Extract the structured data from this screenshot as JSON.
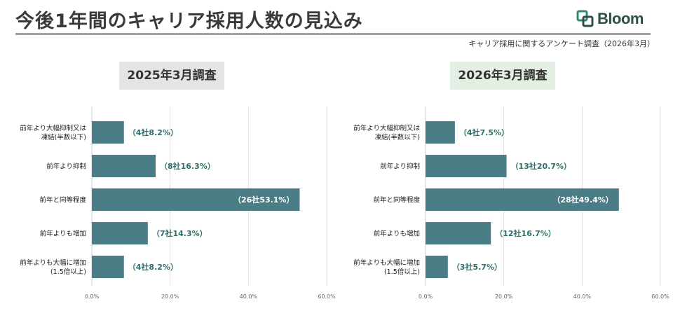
{
  "header": {
    "title": "今後1年間のキャリア採用人数の見込み",
    "logo_text": "Bloom",
    "source": "キャリア採用に関するアンケート調査（2026年3月）"
  },
  "colors": {
    "bar": "#4a7d86",
    "label": "#2f6f6a",
    "grid": "#d6d6d6",
    "rule": "#9aa7a5"
  },
  "chart_data": [
    {
      "type": "bar",
      "orientation": "horizontal",
      "title": "2025年3月調査",
      "categories": [
        [
          "前年より大幅抑制又は",
          "凍結(半数以下)"
        ],
        [
          "前年より抑制"
        ],
        [
          "前年と同等程度"
        ],
        [
          "前年よりも増加"
        ],
        [
          "前年よりも大幅に増加",
          "(1.5倍以上)"
        ]
      ],
      "values": [
        8.2,
        16.3,
        53.1,
        14.3,
        8.2
      ],
      "data_labels": [
        "（4社8.2%）",
        "（8社16.3%）",
        "（26社53.1%）",
        "（7社14.3%）",
        "（4社8.2%）"
      ],
      "xlim": [
        0,
        60
      ],
      "xticks": [
        "0.0%",
        "20.0%",
        "40.0%",
        "60.0%"
      ],
      "grid": true
    },
    {
      "type": "bar",
      "orientation": "horizontal",
      "title": "2026年3月調査",
      "categories": [
        [
          "前年より大幅抑制又は",
          "凍結(半数以下)"
        ],
        [
          "前年より抑制"
        ],
        [
          "前年と同等程度"
        ],
        [
          "前年よりも増加"
        ],
        [
          "前年よりも大幅に増加",
          "(1.5倍以上)"
        ]
      ],
      "values": [
        7.5,
        20.7,
        49.4,
        16.7,
        5.7
      ],
      "data_labels": [
        "（4社7.5%）",
        "（13社20.7%）",
        "（28社49.4%）",
        "（12社16.7%）",
        "（3社5.7%）"
      ],
      "xlim": [
        0,
        60
      ],
      "xticks": [
        "0.0%",
        "20.0%",
        "40.0%",
        "60.0%"
      ],
      "grid": true
    }
  ]
}
